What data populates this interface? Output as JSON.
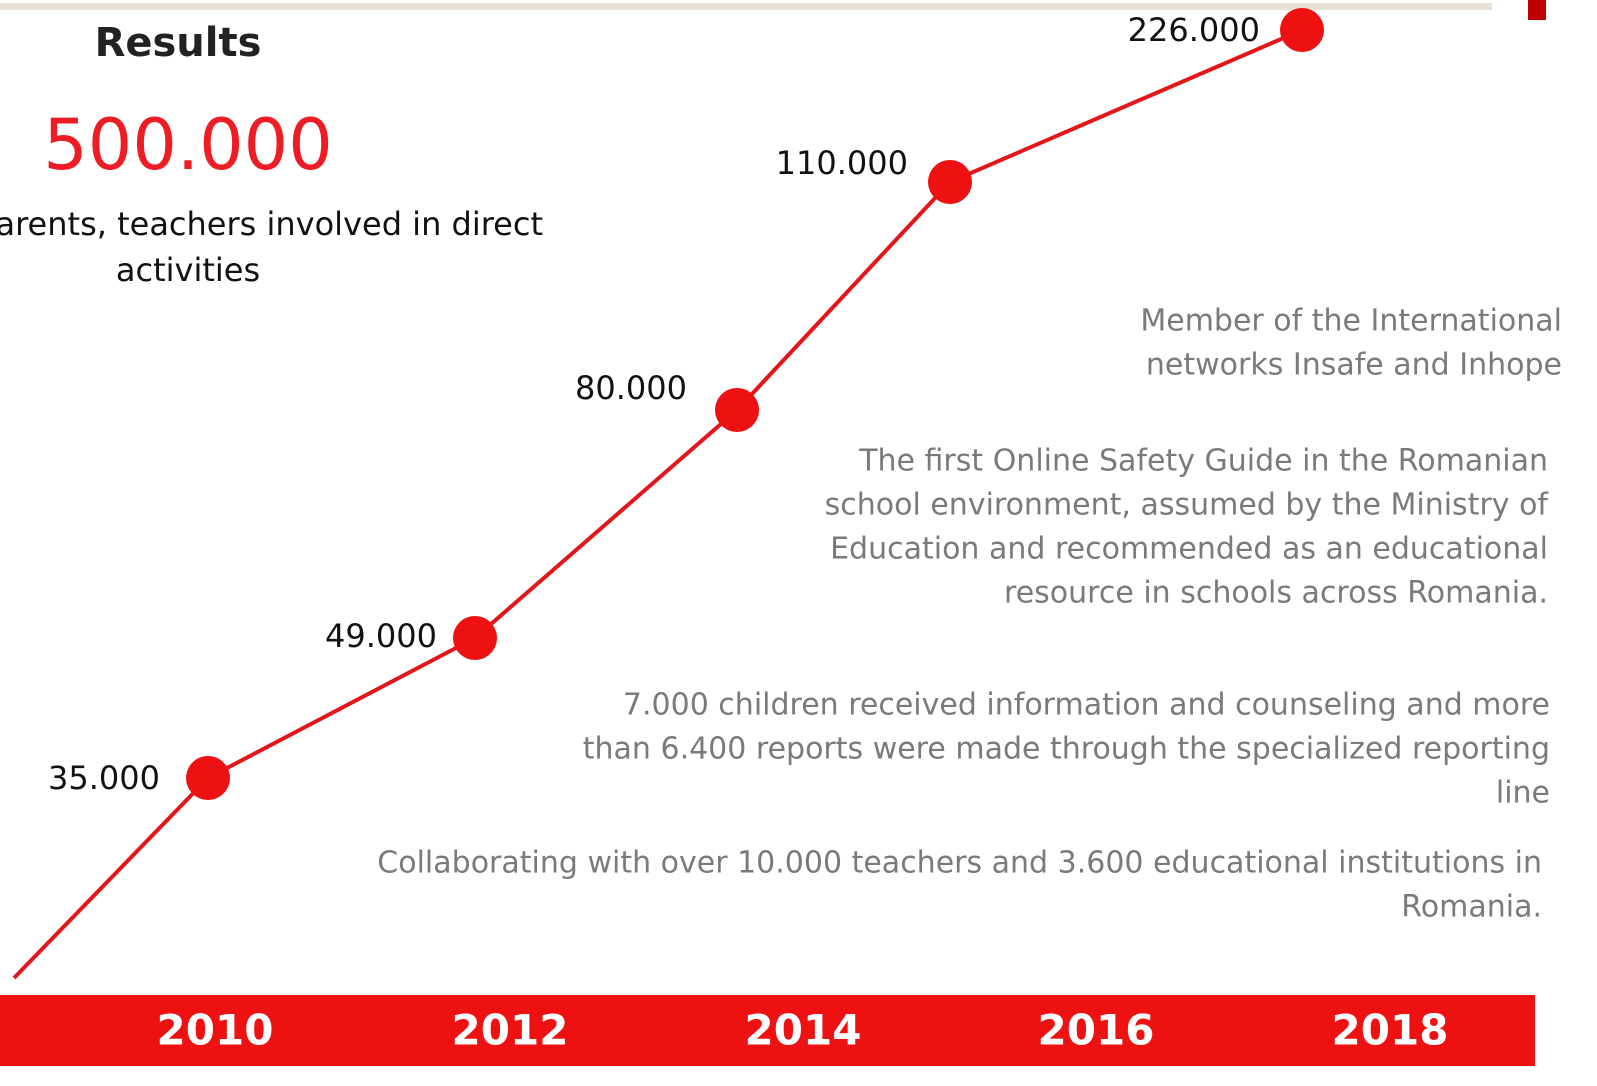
{
  "header": {
    "title": "Results",
    "highlight": "500.000",
    "caption": [
      "parents, teachers involved in direct",
      "activities"
    ]
  },
  "timeline": {
    "points": [
      "35.000",
      "49.000",
      "80.000",
      "110.000",
      "226.000"
    ],
    "years": [
      "2010",
      "2012",
      "2014",
      "2016",
      "2018"
    ]
  },
  "notes": [
    [
      "Member of the International",
      "networks Insafe and Inhope"
    ],
    [
      "The first Online Safety Guide in the Romanian",
      "school environment, assumed by the Ministry of",
      "Education and recommended as an educational",
      "resource in schools across Romania."
    ],
    [
      "7.000 children received information and counseling and more",
      "than 6.400 reports were made through the specialized reporting",
      "line"
    ],
    [
      "Collaborating with over 10.000 teachers and 3.600 educational institutions in",
      "Romania."
    ]
  ]
}
